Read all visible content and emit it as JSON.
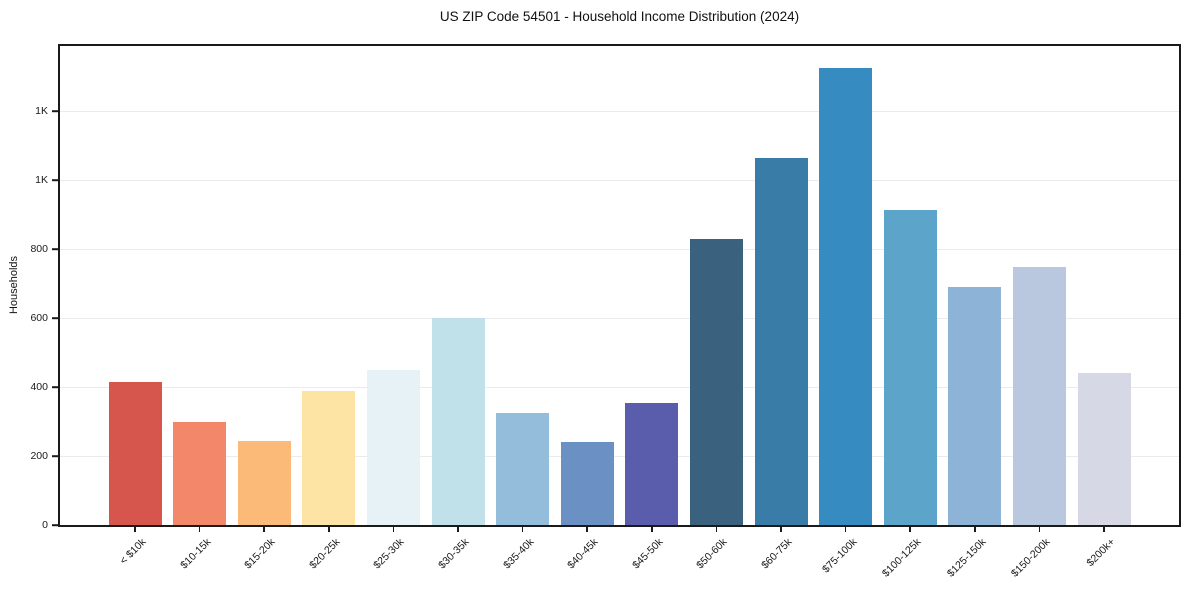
{
  "figure": {
    "background_color": "#ffffff"
  },
  "chart_data": {
    "type": "bar",
    "title": "US ZIP Code 54501 - Household Income Distribution (2024)",
    "xlabel": "",
    "ylabel": "Households",
    "categories": [
      "< $10k",
      "$10-15k",
      "$15-20k",
      "$20-25k",
      "$25-30k",
      "$30-35k",
      "$35-40k",
      "$40-45k",
      "$45-50k",
      "$50-60k",
      "$60-75k",
      "$75-100k",
      "$100-125k",
      "$125-150k",
      "$150-200k",
      "$200k+"
    ],
    "values": [
      415,
      300,
      245,
      390,
      450,
      600,
      325,
      240,
      355,
      830,
      1065,
      1325,
      915,
      690,
      750,
      440
    ],
    "bar_colors": [
      "#d6564e",
      "#f2876a",
      "#fcba79",
      "#fde4a4",
      "#e6f2f6",
      "#c0e0ea",
      "#93bddb",
      "#6b90c3",
      "#595dab",
      "#3a627e",
      "#387ca7",
      "#368cc0",
      "#5ca4ca",
      "#8db4d6",
      "#b9c7df",
      "#d7d8e6"
    ],
    "ylim": [
      0,
      1390
    ],
    "yticks": [
      {
        "value": 0,
        "label": "0"
      },
      {
        "value": 200,
        "label": "200"
      },
      {
        "value": 400,
        "label": "400"
      },
      {
        "value": 600,
        "label": "600"
      },
      {
        "value": 800,
        "label": "800"
      },
      {
        "value": 1000,
        "label": "1K"
      },
      {
        "value": 1200,
        "label": "1K"
      }
    ],
    "grid": "horizontal",
    "gridline_color": "#ebebee",
    "axis_color": "#1a1a1a",
    "legend": "none",
    "x_tick_rotation_deg": 45
  }
}
